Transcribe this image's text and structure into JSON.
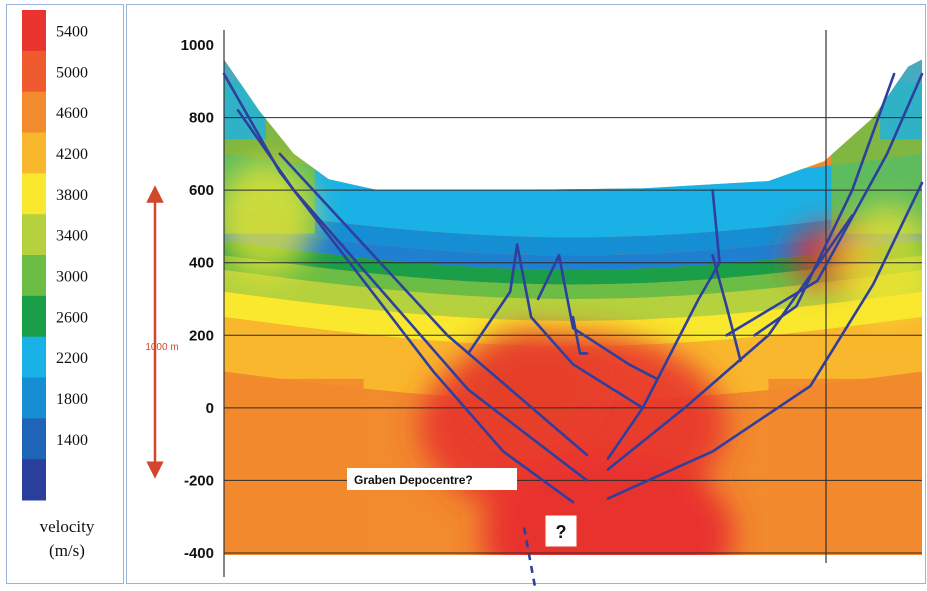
{
  "chart_data": {
    "type": "heatmap",
    "title": "",
    "xlabel": "",
    "ylabel": "",
    "y_ticks": [
      "1000",
      "800",
      "600",
      "400",
      "200",
      "0",
      "-200",
      "-400"
    ],
    "y_tick_values": [
      1000,
      800,
      600,
      400,
      200,
      0,
      -200,
      -400
    ],
    "ylim": [
      -560,
      1000
    ],
    "grid": "horizontal lines at each y tick",
    "colorbar": {
      "title_line1": "velocity",
      "title_line2": "(m/s)",
      "levels": [
        "5400",
        "5000",
        "4600",
        "4200",
        "3800",
        "3400",
        "3000",
        "2600",
        "2200",
        "1800",
        "1400"
      ],
      "colors": [
        "#e8332e",
        "#ee5a2e",
        "#f28a2e",
        "#f9b72d",
        "#f9e82d",
        "#b5d23e",
        "#6cbd45",
        "#1a9e48",
        "#1ab2e6",
        "#168ed4",
        "#1f64b6",
        "#2a3e9c"
      ]
    },
    "annotations": [
      {
        "id": "scale",
        "text": "1000 m"
      },
      {
        "id": "depocentre",
        "text": "Graben Depocentre?"
      },
      {
        "id": "question",
        "text": "?"
      }
    ],
    "surface_elevation": [
      {
        "x": 0.0,
        "y": 960
      },
      {
        "x": 0.05,
        "y": 820
      },
      {
        "x": 0.1,
        "y": 700
      },
      {
        "x": 0.15,
        "y": 630
      },
      {
        "x": 0.22,
        "y": 600
      },
      {
        "x": 0.4,
        "y": 600
      },
      {
        "x": 0.6,
        "y": 605
      },
      {
        "x": 0.78,
        "y": 625
      },
      {
        "x": 0.86,
        "y": 680
      },
      {
        "x": 0.93,
        "y": 800
      },
      {
        "x": 0.98,
        "y": 940
      },
      {
        "x": 1.0,
        "y": 960
      }
    ],
    "faults": [
      [
        [
          0.0,
          920
        ],
        [
          0.08,
          650
        ],
        [
          0.18,
          400
        ],
        [
          0.3,
          100
        ],
        [
          0.4,
          -120
        ],
        [
          0.5,
          -260
        ]
      ],
      [
        [
          0.02,
          820
        ],
        [
          0.1,
          600
        ],
        [
          0.2,
          380
        ],
        [
          0.35,
          50
        ],
        [
          0.52,
          -200
        ]
      ],
      [
        [
          0.08,
          700
        ],
        [
          0.2,
          450
        ],
        [
          0.32,
          200
        ],
        [
          0.52,
          -130
        ]
      ],
      [
        [
          0.35,
          150
        ],
        [
          0.41,
          320
        ],
        [
          0.42,
          450
        ]
      ],
      [
        [
          0.42,
          450
        ],
        [
          0.44,
          250
        ],
        [
          0.5,
          120
        ],
        [
          0.6,
          0
        ]
      ],
      [
        [
          0.45,
          300
        ],
        [
          0.47,
          380
        ],
        [
          0.48,
          420
        ]
      ],
      [
        [
          0.48,
          420
        ],
        [
          0.5,
          220
        ],
        [
          0.58,
          120
        ],
        [
          0.62,
          80
        ]
      ],
      [
        [
          0.5,
          250
        ],
        [
          0.51,
          150
        ],
        [
          0.52,
          150
        ]
      ],
      [
        [
          0.7,
          600
        ],
        [
          0.71,
          400
        ],
        [
          0.68,
          300
        ],
        [
          0.6,
          0
        ],
        [
          0.55,
          -140
        ]
      ],
      [
        [
          0.7,
          420
        ],
        [
          0.72,
          280
        ],
        [
          0.74,
          130
        ]
      ],
      [
        [
          0.76,
          200
        ],
        [
          0.82,
          280
        ],
        [
          0.9,
          600
        ],
        [
          0.96,
          920
        ]
      ],
      [
        [
          0.72,
          200
        ],
        [
          0.85,
          350
        ],
        [
          0.95,
          700
        ],
        [
          1.0,
          920
        ]
      ],
      [
        [
          0.55,
          -250
        ],
        [
          0.7,
          -120
        ],
        [
          0.84,
          60
        ],
        [
          0.93,
          340
        ],
        [
          1.0,
          620
        ]
      ],
      [
        [
          0.55,
          -170
        ],
        [
          0.66,
          0
        ],
        [
          0.78,
          200
        ],
        [
          0.9,
          530
        ]
      ]
    ],
    "blobs": [
      {
        "cx": 0.5,
        "cy": -50,
        "rx": 0.22,
        "ry": 260,
        "color": "#e8332e",
        "opacity": 0.9
      },
      {
        "cx": 0.55,
        "cy": -350,
        "rx": 0.18,
        "ry": 220,
        "color": "#e8332e",
        "opacity": 1.0
      },
      {
        "cx": 0.44,
        "cy": 60,
        "rx": 0.1,
        "ry": 160,
        "color": "#e53e2d",
        "opacity": 0.85
      },
      {
        "cx": 0.87,
        "cy": 420,
        "rx": 0.06,
        "ry": 90,
        "color": "#e8332e",
        "opacity": 0.8
      },
      {
        "cx": 0.06,
        "cy": 520,
        "rx": 0.07,
        "ry": 160,
        "color": "#f9e82d",
        "opacity": 0.7
      },
      {
        "cx": 0.95,
        "cy": 400,
        "rx": 0.07,
        "ry": 160,
        "color": "#f9e82d",
        "opacity": 0.7
      }
    ]
  }
}
